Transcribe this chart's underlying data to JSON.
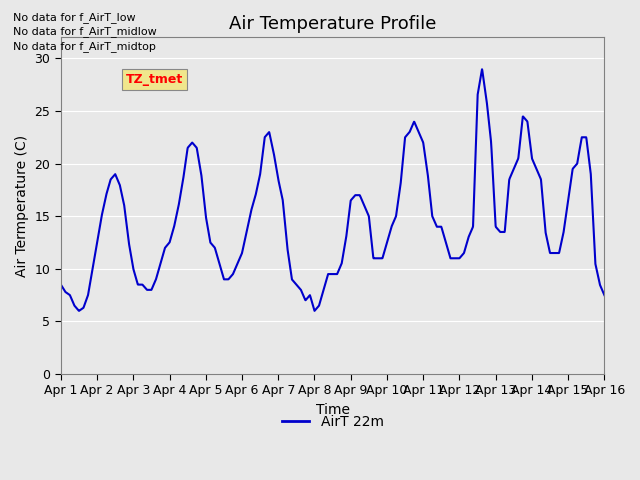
{
  "title": "Air Temperature Profile",
  "xlabel": "Time",
  "ylabel": "Air Termperature (C)",
  "ylim": [
    0,
    32
  ],
  "yticks": [
    0,
    5,
    10,
    15,
    20,
    25,
    30
  ],
  "xlabels": [
    "Apr 1",
    "Apr 2",
    "Apr 3",
    "Apr 4",
    "Apr 5",
    "Apr 6",
    "Apr 7",
    "Apr 8",
    "Apr 9",
    "Apr 10",
    "Apr 11",
    "Apr 12",
    "Apr 13",
    "Apr 14",
    "Apr 15",
    "Apr 16"
  ],
  "line_color": "#0000CC",
  "line_width": 1.5,
  "legend_label": "AirT 22m",
  "background_color": "#E8E8E8",
  "annotations": [
    "No data for f_AirT_low",
    "No data for f_AirT_midlow",
    "No data for f_AirT_midtop"
  ],
  "tz_label": "TZ_tmet",
  "time_values": [
    0.0,
    0.125,
    0.25,
    0.375,
    0.5,
    0.625,
    0.75,
    0.875,
    1.0,
    1.125,
    1.25,
    1.375,
    1.5,
    1.625,
    1.75,
    1.875,
    2.0,
    2.125,
    2.25,
    2.375,
    2.5,
    2.625,
    2.75,
    2.875,
    3.0,
    3.125,
    3.25,
    3.375,
    3.5,
    3.625,
    3.75,
    3.875,
    4.0,
    4.125,
    4.25,
    4.375,
    4.5,
    4.625,
    4.75,
    4.875,
    5.0,
    5.125,
    5.25,
    5.375,
    5.5,
    5.625,
    5.75,
    5.875,
    6.0,
    6.125,
    6.25,
    6.375,
    6.5,
    6.625,
    6.75,
    6.875,
    7.0,
    7.125,
    7.25,
    7.375,
    7.5,
    7.625,
    7.75,
    7.875,
    8.0,
    8.125,
    8.25,
    8.375,
    8.5,
    8.625,
    8.75,
    8.875,
    9.0,
    9.125,
    9.25,
    9.375,
    9.5,
    9.625,
    9.75,
    9.875,
    10.0,
    10.125,
    10.25,
    10.375,
    10.5,
    10.625,
    10.75,
    10.875,
    11.0,
    11.125,
    11.25,
    11.375,
    11.5,
    11.625,
    11.75,
    11.875,
    12.0,
    12.125,
    12.25,
    12.375,
    12.5,
    12.625,
    12.75,
    12.875,
    13.0,
    13.125,
    13.25,
    13.375,
    13.5,
    13.625,
    13.75,
    13.875,
    14.0,
    14.125,
    14.25,
    14.375,
    14.5,
    14.625,
    14.75,
    14.875,
    15.0
  ],
  "temp_values": [
    8.5,
    7.8,
    7.5,
    6.5,
    6.0,
    6.3,
    7.5,
    10.0,
    12.5,
    15.0,
    17.0,
    18.5,
    19.0,
    18.0,
    16.0,
    12.5,
    10.0,
    8.5,
    8.5,
    8.0,
    8.0,
    9.0,
    10.5,
    12.0,
    12.5,
    14.0,
    16.0,
    18.5,
    21.5,
    22.0,
    21.5,
    19.0,
    15.0,
    12.5,
    12.0,
    10.5,
    9.0,
    9.0,
    9.5,
    10.5,
    11.5,
    13.5,
    15.5,
    17.0,
    19.0,
    22.5,
    23.0,
    21.0,
    18.5,
    16.5,
    12.0,
    9.0,
    8.5,
    8.0,
    7.0,
    7.5,
    6.0,
    6.5,
    8.0,
    9.5,
    9.5,
    9.5,
    10.5,
    13.0,
    16.5,
    17.0,
    17.0,
    16.0,
    15.0,
    11.0,
    11.0,
    11.0,
    12.5,
    14.0,
    15.0,
    18.0,
    22.5,
    23.0,
    24.0,
    23.0,
    22.0,
    19.0,
    15.0,
    14.0,
    14.0,
    12.5,
    11.0,
    11.0,
    11.0,
    11.5,
    13.0,
    14.0,
    26.5,
    29.0,
    26.0,
    22.0,
    14.0,
    13.5,
    13.5,
    18.5,
    19.5,
    20.5,
    24.5,
    24.0,
    20.5,
    19.5,
    18.5,
    13.5,
    11.5,
    11.5,
    11.5,
    13.5,
    16.5,
    19.5,
    20.0,
    22.5,
    22.5,
    19.0,
    10.5,
    8.5,
    7.5
  ]
}
